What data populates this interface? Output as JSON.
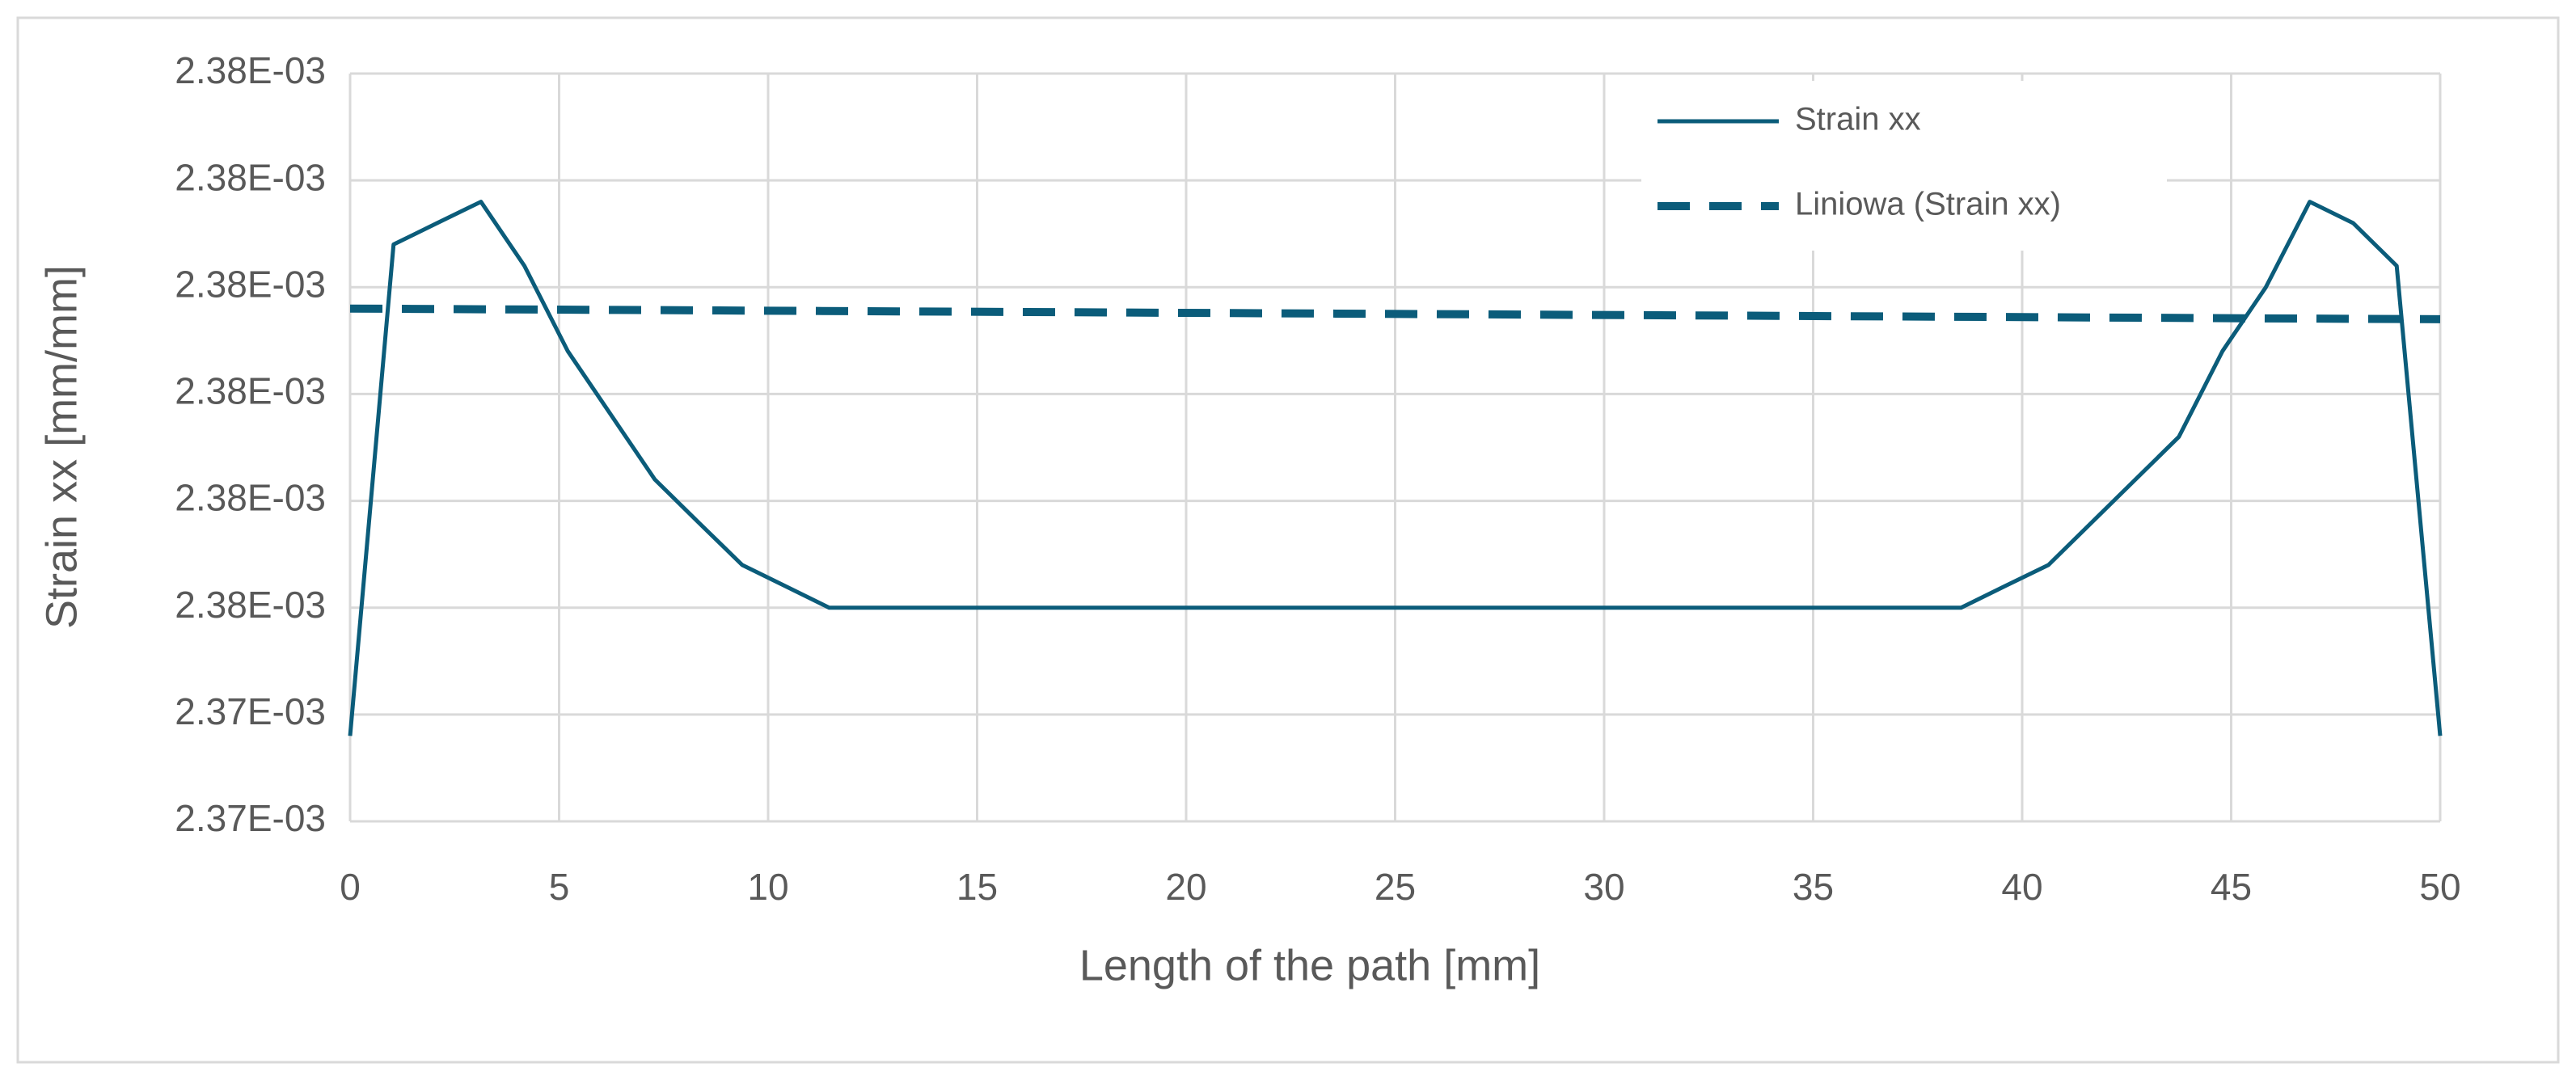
{
  "chart_data": {
    "type": "line",
    "xlabel": "Length of the path [mm]",
    "ylabel": "Strain xx [mm/mm]",
    "xlim": [
      0,
      50
    ],
    "xticks": [
      0,
      5,
      10,
      15,
      20,
      25,
      30,
      35,
      40,
      45,
      50
    ],
    "ylim": [
      0.002373,
      0.00238
    ],
    "yticks": [
      {
        "value": 0.002373,
        "label": "2.37E-03"
      },
      {
        "value": 0.002374,
        "label": "2.37E-03"
      },
      {
        "value": 0.002375,
        "label": "2.38E-03"
      },
      {
        "value": 0.002376,
        "label": "2.38E-03"
      },
      {
        "value": 0.002377,
        "label": "2.38E-03"
      },
      {
        "value": 0.002378,
        "label": "2.38E-03"
      },
      {
        "value": 0.002379,
        "label": "2.38E-03"
      },
      {
        "value": 0.00238,
        "label": "2.38E-03"
      }
    ],
    "grid": true,
    "legend": "upper right",
    "series": [
      {
        "name": "Strain xx",
        "color": "#0b5c7a",
        "dash": false,
        "x": [
          0,
          1.04,
          2.08,
          3.13,
          4.17,
          5.21,
          6.25,
          7.29,
          8.33,
          9.38,
          10.42,
          11.46,
          38.54,
          39.58,
          40.63,
          41.67,
          42.71,
          43.75,
          44.79,
          45.83,
          46.88,
          47.92,
          48.96,
          50
        ],
        "values": [
          0.0023738,
          0.0023784,
          0.0023786,
          0.0023788,
          0.0023782,
          0.0023774,
          0.0023768,
          0.0023762,
          0.0023758,
          0.0023754,
          0.0023752,
          0.002375,
          0.002375,
          0.0023752,
          0.0023754,
          0.0023758,
          0.0023762,
          0.0023766,
          0.0023774,
          0.002378,
          0.0023788,
          0.0023786,
          0.0023782,
          0.0023738
        ]
      },
      {
        "name": "Liniowa (Strain xx)",
        "color": "#0b5c7a",
        "dash": true,
        "x": [
          0,
          50
        ],
        "values": [
          0.0023778,
          0.0023777
        ]
      }
    ]
  }
}
